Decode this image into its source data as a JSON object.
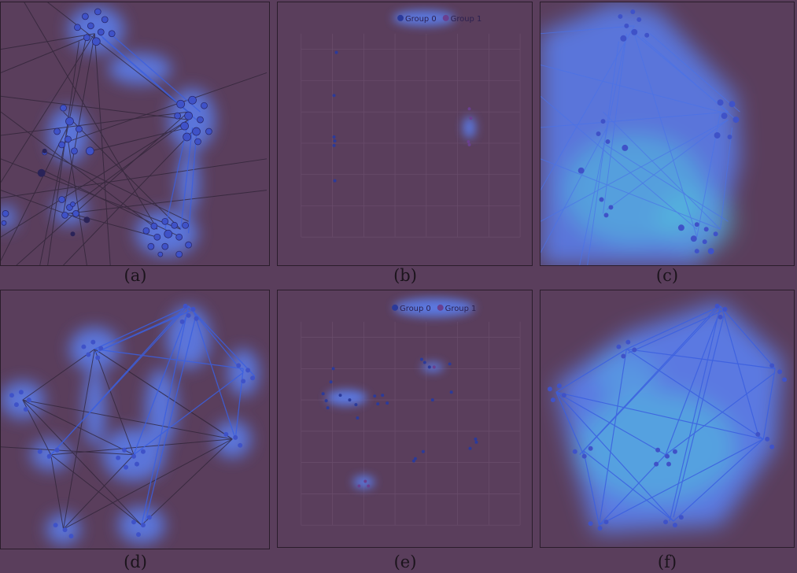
{
  "figure": {
    "panels": [
      {
        "id": "a",
        "caption": "(a)",
        "kind": "graph"
      },
      {
        "id": "b",
        "caption": "(b)",
        "kind": "scatter"
      },
      {
        "id": "c",
        "caption": "(c)",
        "kind": "graph"
      },
      {
        "id": "d",
        "caption": "(d)",
        "kind": "graph"
      },
      {
        "id": "e",
        "caption": "(e)",
        "kind": "scatter"
      },
      {
        "id": "f",
        "caption": "(f)",
        "kind": "graph"
      }
    ],
    "legend": {
      "group0": "Group 0",
      "group1": "Group 1"
    },
    "colors": {
      "background": "#5a3e5c",
      "halo": "#5b7ff0",
      "halo_strong": "#4fd3e0",
      "node": "#3f52c8",
      "node_dark": "#2a2358",
      "edge_dark": "#2e2336",
      "edge_blue": "#3b5fe0",
      "group0": "#2b3a9a",
      "group1": "#6a3f8f"
    }
  }
}
